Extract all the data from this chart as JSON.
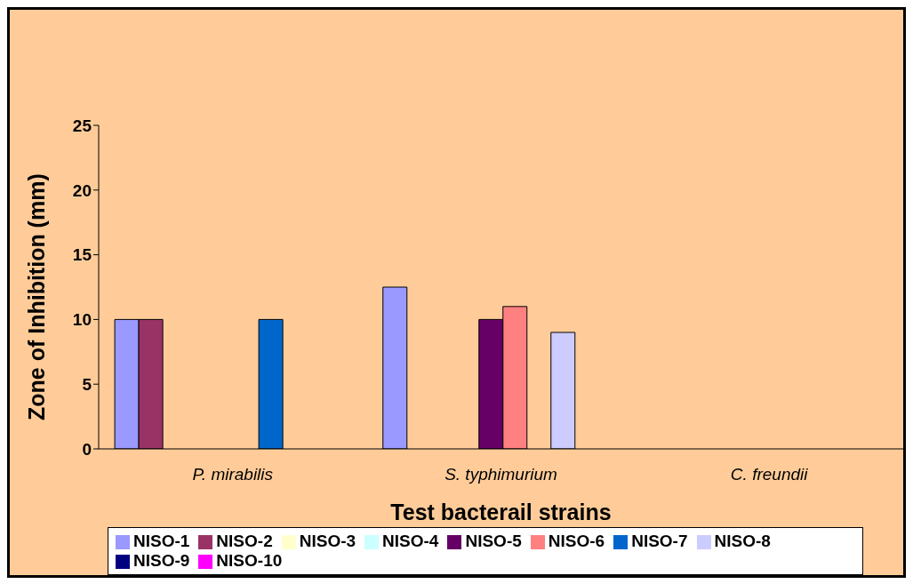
{
  "chart_data": {
    "type": "bar",
    "xlabel": "Test bacterail strains",
    "ylabel": "Zone of Inhibition (mm)",
    "categories": [
      "P. mirabilis",
      "S. typhimurium",
      "C. freundii"
    ],
    "series": [
      {
        "name": "NISO-1",
        "color": "#9999ff",
        "values": [
          10,
          12.5,
          0
        ]
      },
      {
        "name": "NISO-2",
        "color": "#993366",
        "values": [
          10,
          0,
          0
        ]
      },
      {
        "name": "NISO-3",
        "color": "#ffffcc",
        "values": [
          0,
          0,
          0
        ]
      },
      {
        "name": "NISO-4",
        "color": "#ccffff",
        "values": [
          0,
          0,
          0
        ]
      },
      {
        "name": "NISO-5",
        "color": "#660066",
        "values": [
          0,
          10,
          0
        ]
      },
      {
        "name": "NISO-6",
        "color": "#ff8080",
        "values": [
          0,
          11,
          0
        ]
      },
      {
        "name": "NISO-7",
        "color": "#0066cc",
        "values": [
          10,
          0,
          0
        ]
      },
      {
        "name": "NISO-8",
        "color": "#ccccff",
        "values": [
          0,
          9,
          0
        ]
      },
      {
        "name": "NISO-9",
        "color": "#000080",
        "values": [
          0,
          0,
          0
        ]
      },
      {
        "name": "NISO-10",
        "color": "#ff00ff",
        "values": [
          0,
          0,
          0
        ]
      }
    ],
    "ylim": [
      0,
      25
    ],
    "yticks": [
      0,
      5,
      10,
      15,
      20,
      25
    ],
    "grid": false,
    "legend": "bottom"
  }
}
